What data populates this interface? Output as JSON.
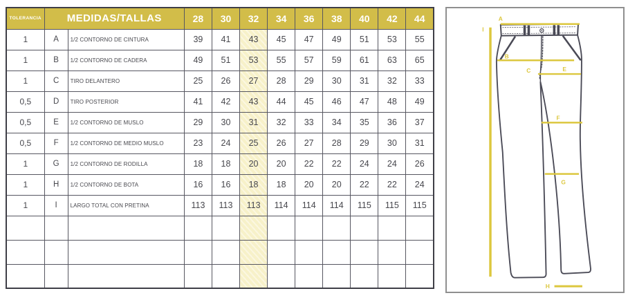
{
  "table": {
    "tolerance_header": "TOLERANCIA",
    "measures_header": "MEDIDAS/TALLAS",
    "sizes": [
      "28",
      "30",
      "32",
      "34",
      "36",
      "38",
      "40",
      "42",
      "44"
    ],
    "highlighted_size": "32",
    "rows": [
      {
        "tolerance": "1",
        "letter": "A",
        "description": "1/2 CONTORNO DE CINTURA",
        "values": [
          "39",
          "41",
          "43",
          "45",
          "47",
          "49",
          "51",
          "53",
          "55"
        ]
      },
      {
        "tolerance": "1",
        "letter": "B",
        "description": "1/2 CONTORNO DE CADERA",
        "values": [
          "49",
          "51",
          "53",
          "55",
          "57",
          "59",
          "61",
          "63",
          "65"
        ]
      },
      {
        "tolerance": "1",
        "letter": "C",
        "description": "TIRO DELANTERO",
        "values": [
          "25",
          "26",
          "27",
          "28",
          "29",
          "30",
          "31",
          "32",
          "33"
        ]
      },
      {
        "tolerance": "0,5",
        "letter": "D",
        "description": "TIRO POSTERIOR",
        "values": [
          "41",
          "42",
          "43",
          "44",
          "45",
          "46",
          "47",
          "48",
          "49"
        ]
      },
      {
        "tolerance": "0,5",
        "letter": "E",
        "description": "1/2 CONTORNO DE MUSLO",
        "values": [
          "29",
          "30",
          "31",
          "32",
          "33",
          "34",
          "35",
          "36",
          "37"
        ]
      },
      {
        "tolerance": "0,5",
        "letter": "F",
        "description": "1/2 CONTORNO DE MEDIO MUSLO",
        "values": [
          "23",
          "24",
          "25",
          "26",
          "27",
          "28",
          "29",
          "30",
          "31"
        ]
      },
      {
        "tolerance": "1",
        "letter": "G",
        "description": "1/2 CONTORNO DE RODILLA",
        "values": [
          "18",
          "18",
          "20",
          "20",
          "22",
          "22",
          "24",
          "24",
          "26"
        ]
      },
      {
        "tolerance": "1",
        "letter": "H",
        "description": "1/2 CONTORNO DE BOTA",
        "values": [
          "16",
          "16",
          "18",
          "18",
          "20",
          "20",
          "22",
          "22",
          "24"
        ]
      },
      {
        "tolerance": "1",
        "letter": "I",
        "description": "LARGO TOTAL CON PRETINA",
        "values": [
          "113",
          "113",
          "113",
          "114",
          "114",
          "114",
          "115",
          "115",
          "115"
        ]
      }
    ],
    "empty_row_count": 3
  },
  "diagram": {
    "labels": {
      "a": "A",
      "b": "B",
      "c": "C",
      "e": "E",
      "f": "F",
      "g": "G",
      "h": "H",
      "i": "I"
    }
  },
  "colors": {
    "header_bg": "#d2bd49",
    "highlight_col": "#f7f1c9",
    "measure_line": "#dcc73e",
    "pants_outline": "#4a4a56"
  }
}
